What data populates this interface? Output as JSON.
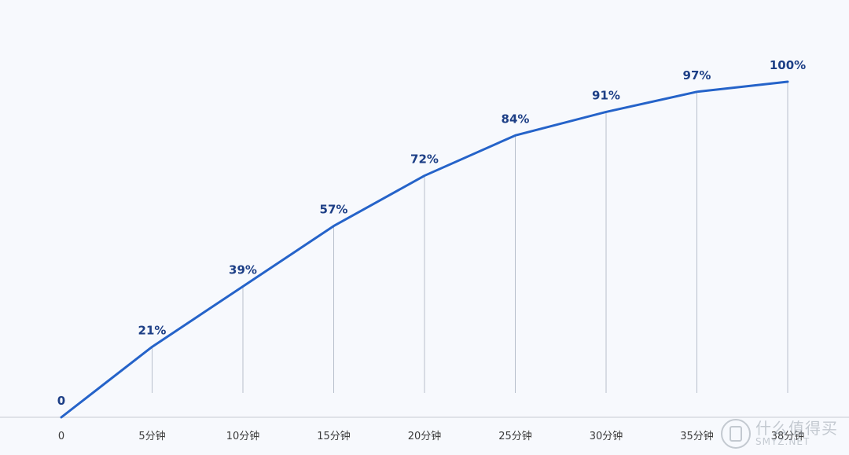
{
  "chart_data": {
    "type": "line",
    "title": "",
    "xlabel": "",
    "ylabel": "",
    "categories": [
      "0",
      "5分钟",
      "10分钟",
      "15分钟",
      "20分钟",
      "25分钟",
      "30分钟",
      "35分钟",
      "38分钟"
    ],
    "x": [
      0,
      5,
      10,
      15,
      20,
      25,
      30,
      35,
      38
    ],
    "values": [
      0,
      21,
      39,
      57,
      72,
      84,
      91,
      97,
      100
    ],
    "value_labels": [
      "0",
      "21%",
      "39%",
      "57%",
      "72%",
      "84%",
      "91%",
      "97%",
      "100%"
    ],
    "ylim": [
      0,
      100
    ],
    "grid": false,
    "line_color": "#2563c9",
    "drop_line_color": "#b8c0cc",
    "label_color": "#1d3f86",
    "axis_color": "#c7ccd4"
  },
  "watermark": {
    "main": "什么值得买",
    "sub": "SMYZ.NET"
  }
}
